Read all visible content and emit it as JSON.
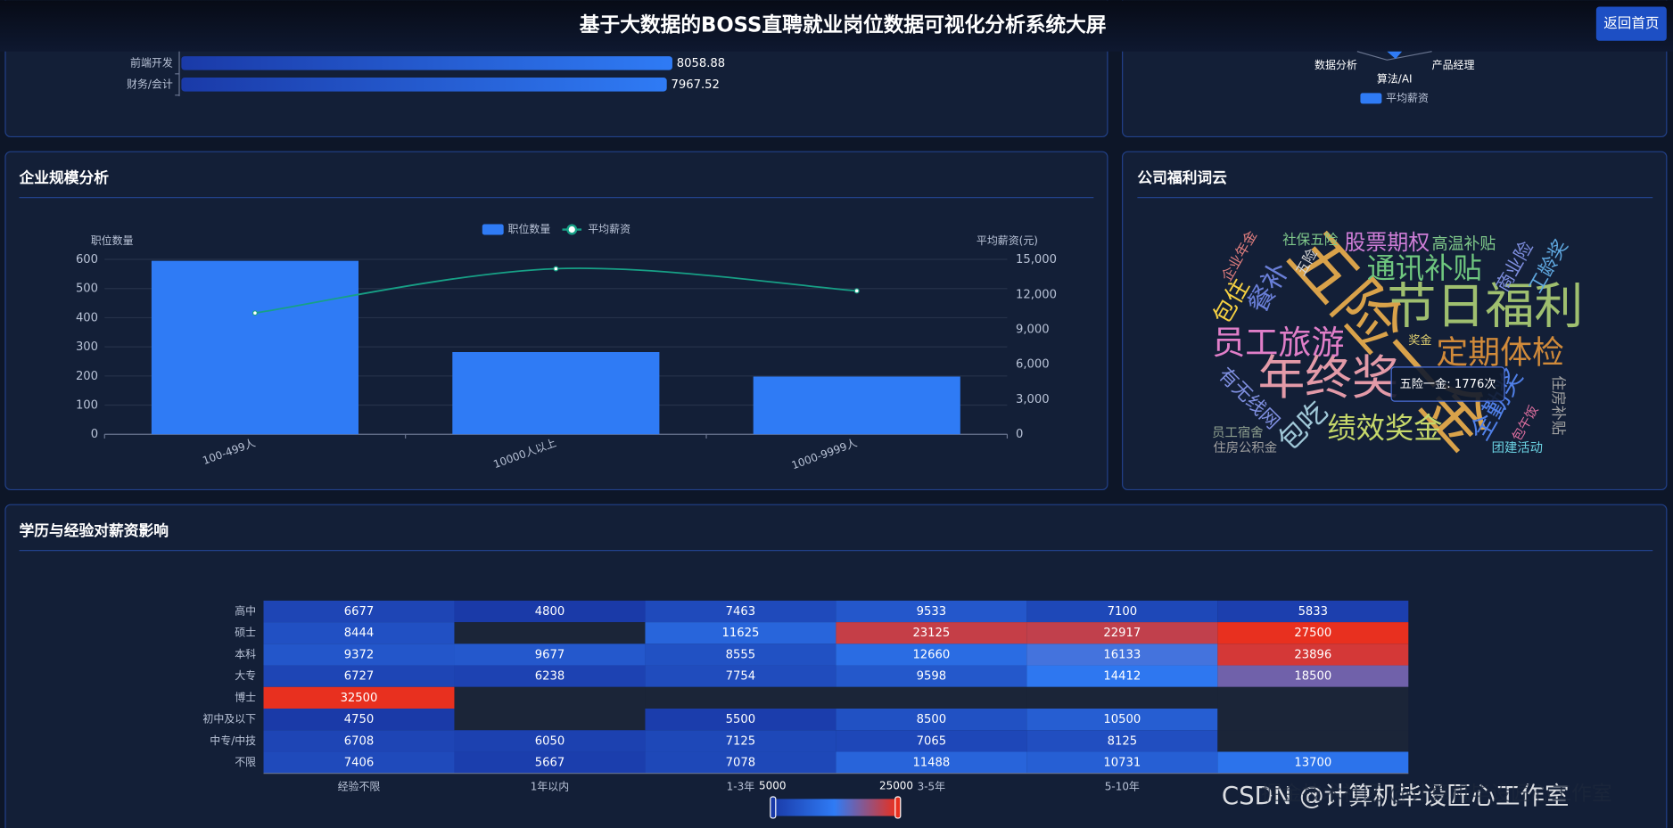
{
  "header": {
    "title": "基于大数据的BOSS直聘就业岗位数据可视化分析系统大屏",
    "button": "返回首页"
  },
  "watermark": [
    "掘金技术社区 @计算机毕设匠心工作室",
    "CSDN @计算机毕设匠心工作室"
  ],
  "chart_data": [
    {
      "type": "hbar",
      "categories": [
        "前端开发",
        "财务/会计"
      ],
      "values": [
        8058.88,
        7967.52
      ],
      "color": "#2f7bf5",
      "xlim": [
        0,
        10000
      ]
    },
    {
      "type": "radar",
      "indicators": [
        "数据分析",
        "算法/AI",
        "产品经理"
      ],
      "series": [
        {
          "name": "平均薪资",
          "color": "#2f7bf5"
        }
      ]
    },
    {
      "type": "combo",
      "title": "企业规模分析",
      "categories": [
        "100-499人",
        "10000人以上",
        "1000-9999人"
      ],
      "series": [
        {
          "name": "职位数量",
          "type": "bar",
          "color": "#2f7bf5",
          "values": [
            595,
            282,
            198
          ]
        },
        {
          "name": "平均薪资",
          "type": "line",
          "color": "#17a086",
          "axis": "y2",
          "values": [
            10400,
            14200,
            12300
          ]
        }
      ],
      "ylabel": "职位数量",
      "y2label": "平均薪资(元)",
      "ylim": [
        0,
        600
      ],
      "yticks": [
        0,
        100,
        200,
        300,
        400,
        500,
        600
      ],
      "y2lim": [
        0,
        15000
      ],
      "y2ticks": [
        0,
        {
          "value": 3000,
          "label": "3,000"
        },
        {
          "value": 6000,
          "label": "6,000"
        },
        {
          "value": 9000,
          "label": "9,000"
        },
        {
          "value": 12000,
          "label": "12,000"
        },
        {
          "value": 15000,
          "label": "15,000"
        }
      ],
      "grid": true,
      "legend": "top"
    },
    {
      "type": "wordcloud",
      "title": "公司福利词云",
      "words": [
        "五险一金",
        "节日福利",
        "年终奖",
        "员工旅游",
        "定期体检",
        "通讯补贴",
        "绩效奖金",
        "股票期权",
        "高温补贴",
        "社保五险",
        "企业年金",
        "五险",
        "包住",
        "餐补",
        "商业险",
        "工龄奖",
        "奖金",
        "有无线网",
        "包吃",
        "全勤奖",
        "包午饭",
        "住房补贴",
        "员工宿舍",
        "住房公积金",
        "团建活动"
      ],
      "tooltip": "五险一金: 1776次"
    },
    {
      "type": "heatmap",
      "title": "学历与经验对薪资影响",
      "x": [
        "经验不限",
        "1年以内",
        "1-3年",
        "3-5年",
        "5-10年",
        null
      ],
      "y": [
        "高中",
        "硕士",
        "本科",
        "大专",
        "博士",
        "初中及以下",
        "中专/中技",
        "不限"
      ],
      "values": [
        [
          6677,
          4800,
          7463,
          9533,
          7100,
          5833
        ],
        [
          8444,
          null,
          11625,
          23125,
          22917,
          27500
        ],
        [
          9372,
          9677,
          8555,
          12660,
          16133,
          23896
        ],
        [
          6727,
          6238,
          7754,
          9598,
          14412,
          18500
        ],
        [
          32500,
          null,
          null,
          null,
          null,
          null
        ],
        [
          4750,
          null,
          5500,
          8500,
          10500,
          null
        ],
        [
          6708,
          6050,
          7125,
          7065,
          8125,
          null
        ],
        [
          7406,
          5667,
          7078,
          11488,
          10731,
          13700
        ]
      ],
      "range": [
        5000,
        25000
      ],
      "colors": [
        "#1a3aa8",
        "#2f7bf5",
        "#e8301f"
      ]
    }
  ]
}
